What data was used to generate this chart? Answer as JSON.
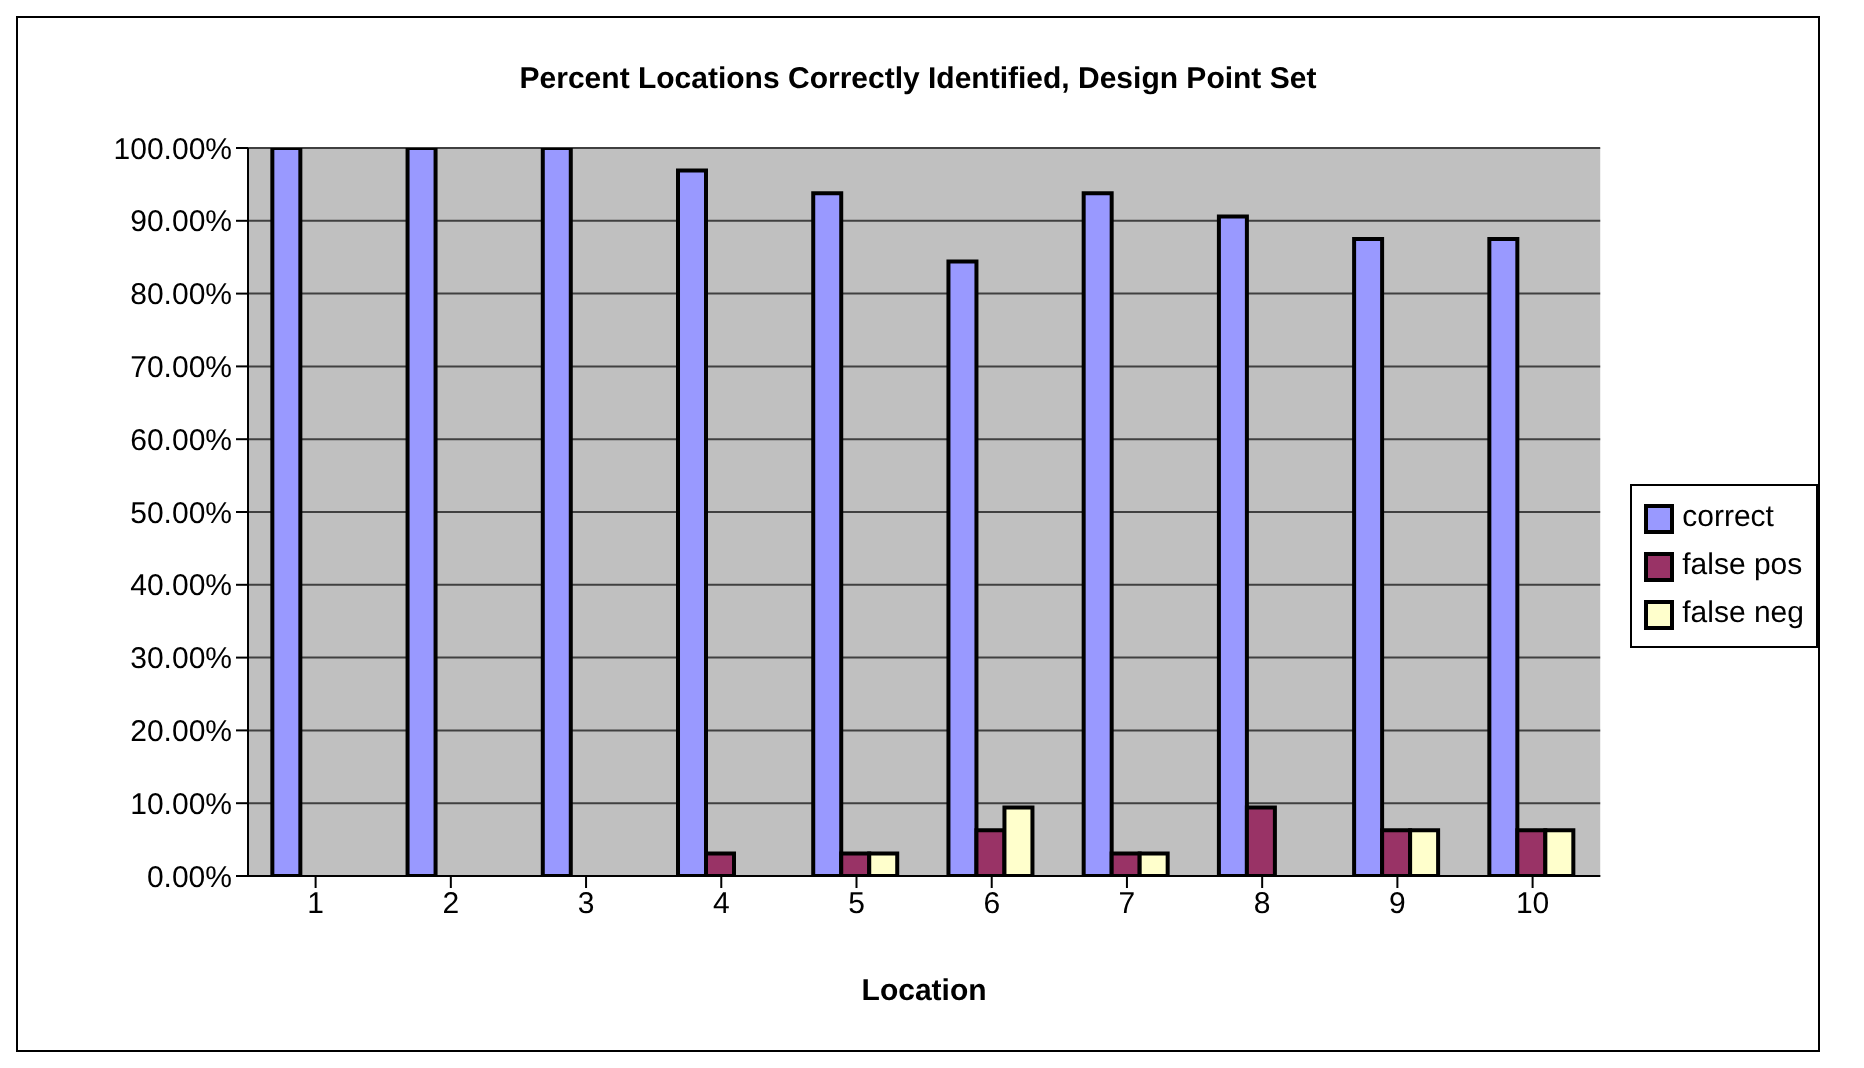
{
  "chart_data": {
    "type": "bar",
    "title": "Percent Locations Correctly Identified, Design Point Set",
    "xlabel": "Location",
    "categories": [
      "1",
      "2",
      "3",
      "4",
      "5",
      "6",
      "7",
      "8",
      "9",
      "10"
    ],
    "series": [
      {
        "name": "correct",
        "color": "#9999ff",
        "values": [
          100,
          100,
          100,
          96.9,
          93.8,
          84.4,
          93.8,
          90.6,
          87.5,
          87.5
        ]
      },
      {
        "name": "false pos",
        "color": "#993366",
        "values": [
          0,
          0,
          0,
          3.1,
          3.1,
          6.3,
          3.1,
          9.4,
          6.3,
          6.3
        ]
      },
      {
        "name": "false neg",
        "color": "#ffffcc",
        "values": [
          0,
          0,
          0,
          0,
          3.1,
          9.4,
          3.1,
          0,
          6.3,
          6.3
        ]
      }
    ],
    "ylim": [
      0,
      100
    ],
    "yticks": [
      {
        "value": 0,
        "label": "0.00%"
      },
      {
        "value": 10,
        "label": "10.00%"
      },
      {
        "value": 20,
        "label": "20.00%"
      },
      {
        "value": 30,
        "label": "30.00%"
      },
      {
        "value": 40,
        "label": "40.00%"
      },
      {
        "value": 50,
        "label": "50.00%"
      },
      {
        "value": 60,
        "label": "60.00%"
      },
      {
        "value": 70,
        "label": "70.00%"
      },
      {
        "value": 80,
        "label": "80.00%"
      },
      {
        "value": 90,
        "label": "90.00%"
      },
      {
        "value": 100,
        "label": "100.00%"
      }
    ],
    "grid": "y",
    "legend": "right"
  }
}
